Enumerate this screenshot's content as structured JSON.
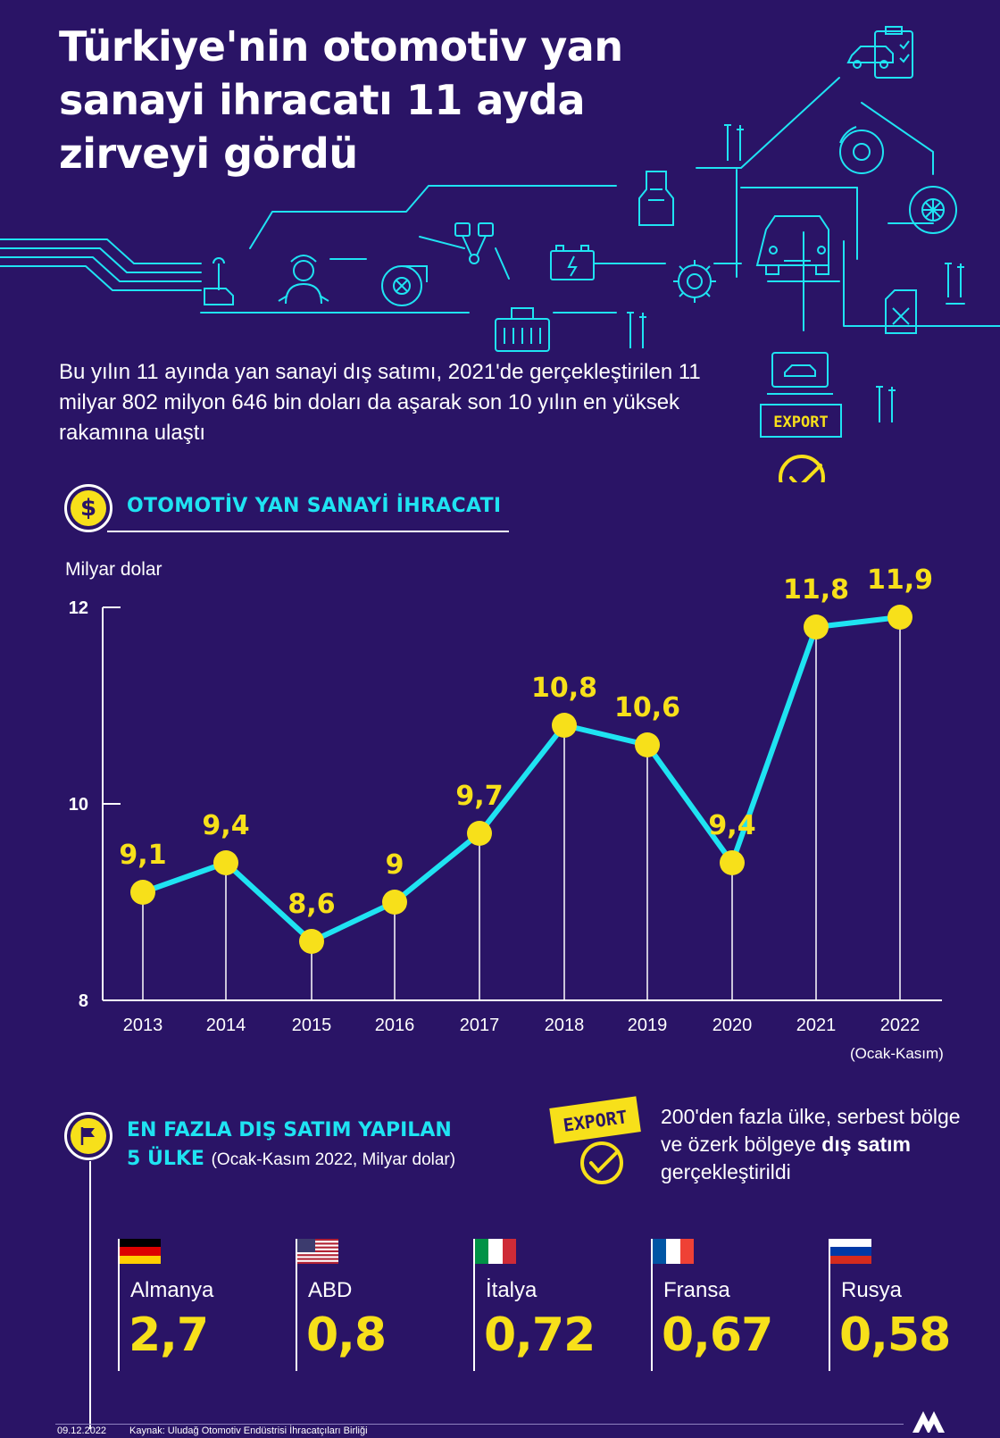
{
  "title": "Türkiye'nin otomotiv yan sanayi ihracatı 11 ayda zirveyi gördü",
  "subtitle": "Bu yılın 11 ayında yan sanayi dış satımı, 2021'de gerçekleştirilen 11 milyar 802 milyon 646 bin doları da aşarak son 10 yılın en yüksek rakamına ulaştı",
  "illustration": {
    "export_badge": "EXPORT"
  },
  "section1": {
    "icon_glyph": "$",
    "title": "OTOMOTİV YAN SANAYİ İHRACATI"
  },
  "chart_data": {
    "type": "line",
    "title": "OTOMOTİV YAN SANAYİ İHRACATI",
    "ylabel": "Milyar dolar",
    "xlabel": "",
    "categories": [
      "2013",
      "2014",
      "2015",
      "2016",
      "2017",
      "2018",
      "2019",
      "2020",
      "2021",
      "2022"
    ],
    "values": [
      9.1,
      9.4,
      8.6,
      9.0,
      9.7,
      10.8,
      10.6,
      9.4,
      11.8,
      11.9
    ],
    "value_labels": [
      "9,1",
      "9,4",
      "8,6",
      "9",
      "9,7",
      "10,8",
      "10,6",
      "9,4",
      "11,8",
      "11,9"
    ],
    "ylim": [
      8,
      12
    ],
    "yticks": [
      "8",
      "10",
      "12"
    ],
    "note": "(Ocak-Kasım)",
    "line_color": "#1fe3f2",
    "marker_color": "#f7e01a",
    "label_color": "#f7e01a",
    "grid": false,
    "legend": "none"
  },
  "section2": {
    "title_line1": "EN FAZLA DIŞ SATIM YAPILAN",
    "title_line2": "5 ÜLKE",
    "subtitle": "(Ocak-Kasım 2022, Milyar dolar)",
    "export_badge": "EXPORT",
    "export_note_part1": "200'den fazla ülke, serbest bölge ve özerk bölgeye ",
    "export_note_bold1": "dış satım",
    "export_note_part2": " gerçekleştirildi",
    "countries": [
      {
        "name": "Almanya",
        "value": "2,7",
        "flag": "germany-flag"
      },
      {
        "name": "ABD",
        "value": "0,8",
        "flag": "usa-flag"
      },
      {
        "name": "İtalya",
        "value": "0,72",
        "flag": "italy-flag"
      },
      {
        "name": "Fransa",
        "value": "0,67",
        "flag": "france-flag"
      },
      {
        "name": "Rusya",
        "value": "0,58",
        "flag": "russia-flag"
      }
    ]
  },
  "footer": {
    "date": "09.12.2022",
    "source": "Kaynak: Uludağ Otomotiv Endüstrisi İhracatçıları Birliği",
    "logo": "AA"
  },
  "colors": {
    "background": "#2a1466",
    "accent_cyan": "#1fe3f2",
    "accent_yellow": "#f7e01a"
  }
}
